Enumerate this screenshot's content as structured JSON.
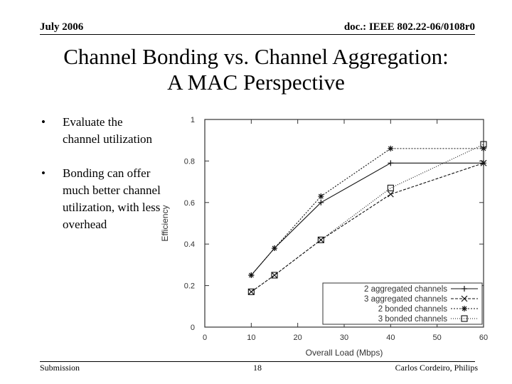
{
  "header": {
    "date": "July 2006",
    "doc_id": "doc.: IEEE 802.22-06/0108r0"
  },
  "slide": {
    "title_line1": "Channel Bonding vs. Channel Aggregation:",
    "title_line2": "A MAC Perspective",
    "bullets": [
      {
        "mark": "•",
        "text": "Evaluate the channel utilization"
      },
      {
        "mark": "•",
        "text": "Bonding can offer much better channel utilization, with less overhead"
      }
    ]
  },
  "chart_data": {
    "type": "line",
    "xlabel": "Overall Load (Mbps)",
    "ylabel": "Efficiency",
    "xlim": [
      0,
      60
    ],
    "ylim": [
      0,
      1
    ],
    "x_ticks": [
      0,
      10,
      20,
      30,
      40,
      50,
      60
    ],
    "y_ticks": [
      0,
      0.2,
      0.4,
      0.6,
      0.8,
      1
    ],
    "y_tick_labels": [
      "0",
      "0.2",
      "0.4",
      "0.6",
      "0.8",
      "1"
    ],
    "legend_position": "bottom-right",
    "series": [
      {
        "name": "2 aggregated channels",
        "marker": "plus",
        "dash": "solid",
        "x": [
          10,
          15,
          25,
          40,
          60
        ],
        "y": [
          0.25,
          0.38,
          0.6,
          0.79,
          0.79
        ]
      },
      {
        "name": "3 aggregated channels",
        "marker": "x",
        "dash": "dashed",
        "x": [
          10,
          15,
          25,
          40,
          60
        ],
        "y": [
          0.17,
          0.25,
          0.42,
          0.64,
          0.79
        ]
      },
      {
        "name": "2 bonded channels",
        "marker": "star",
        "dash": "dotted",
        "x": [
          10,
          15,
          25,
          40,
          60
        ],
        "y": [
          0.25,
          0.38,
          0.63,
          0.86,
          0.86
        ]
      },
      {
        "name": "3 bonded channels",
        "marker": "square",
        "dash": "dense-dotted",
        "x": [
          10,
          15,
          25,
          40,
          60
        ],
        "y": [
          0.17,
          0.25,
          0.42,
          0.67,
          0.88
        ]
      }
    ]
  },
  "footer": {
    "left": "Submission",
    "page": "18",
    "right": "Carlos Cordeiro, Philips"
  }
}
